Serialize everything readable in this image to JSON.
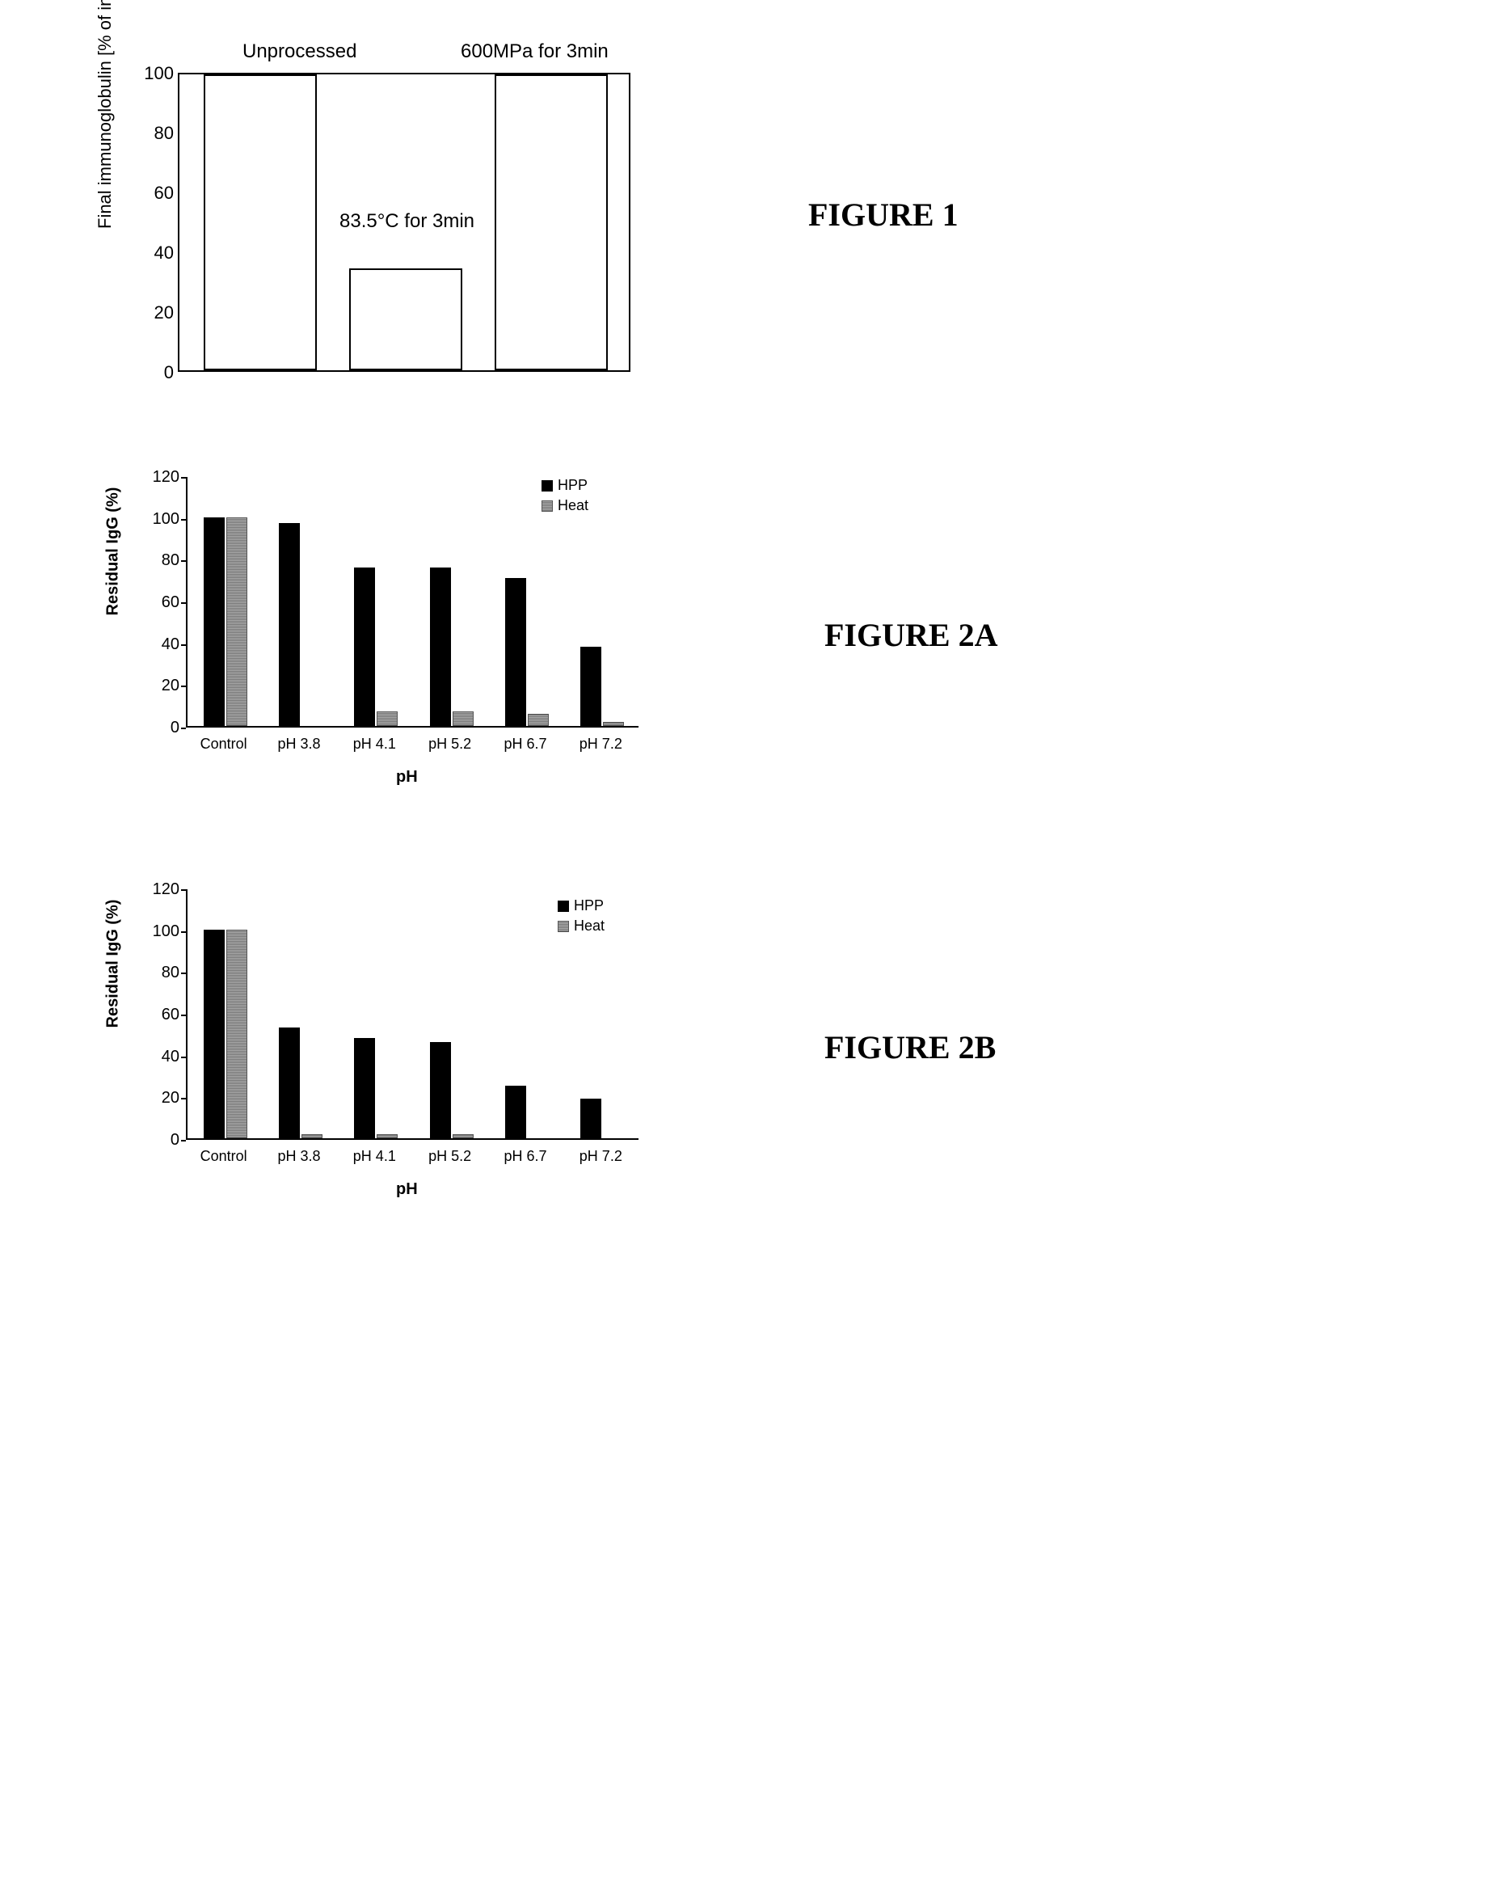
{
  "figure1": {
    "type": "bar",
    "label": "FIGURE 1",
    "ylabel": "Final immunoglobulin [% of initial]",
    "annotations": {
      "unprocessed": "Unprocessed",
      "heat": "83.5°C for 3min",
      "hpp": "600MPa for 3min"
    },
    "yticks": [
      0,
      20,
      40,
      60,
      80,
      100
    ],
    "ylim": [
      0,
      100
    ],
    "bars": [
      {
        "name": "unprocessed",
        "value": 99,
        "color": "#ffffff",
        "border": "#000000"
      },
      {
        "name": "heat",
        "value": 34,
        "color": "#ffffff",
        "border": "#000000"
      },
      {
        "name": "hpp",
        "value": 99,
        "color": "#ffffff",
        "border": "#000000"
      }
    ],
    "bar_width": 0.8,
    "background_color": "#ffffff",
    "title_fontsize": 24,
    "label_fontsize": 22
  },
  "figure2a": {
    "type": "bar",
    "label": "FIGURE 2A",
    "ylabel": "Residual IgG (%)",
    "xlabel": "pH",
    "categories": [
      "Control",
      "pH 3.8",
      "pH 4.1",
      "pH 5.2",
      "pH 6.7",
      "pH 7.2"
    ],
    "yticks": [
      0,
      20,
      40,
      60,
      80,
      100,
      120
    ],
    "ylim": [
      0,
      120
    ],
    "series": {
      "hpp": {
        "label": "HPP",
        "color": "#000000",
        "values": [
          100,
          97,
          76,
          76,
          71,
          38
        ]
      },
      "heat": {
        "label": "Heat",
        "color": "#999999",
        "values": [
          100,
          0,
          7,
          7,
          6,
          2
        ]
      }
    },
    "bar_width": 0.35,
    "label_fontsize": 20,
    "tick_fontsize": 18
  },
  "figure2b": {
    "type": "bar",
    "label": "FIGURE 2B",
    "ylabel": "Residual IgG (%)",
    "xlabel": "pH",
    "categories": [
      "Control",
      "pH 3.8",
      "pH 4.1",
      "pH 5.2",
      "pH 6.7",
      "pH 7.2"
    ],
    "yticks": [
      0,
      20,
      40,
      60,
      80,
      100,
      120
    ],
    "ylim": [
      0,
      120
    ],
    "series": {
      "hpp": {
        "label": "HPP",
        "color": "#000000",
        "values": [
          100,
          53,
          48,
          46,
          25,
          19
        ]
      },
      "heat": {
        "label": "Heat",
        "color": "#999999",
        "values": [
          100,
          2,
          2,
          2,
          0,
          0
        ]
      }
    },
    "bar_width": 0.35,
    "label_fontsize": 20,
    "tick_fontsize": 18
  }
}
